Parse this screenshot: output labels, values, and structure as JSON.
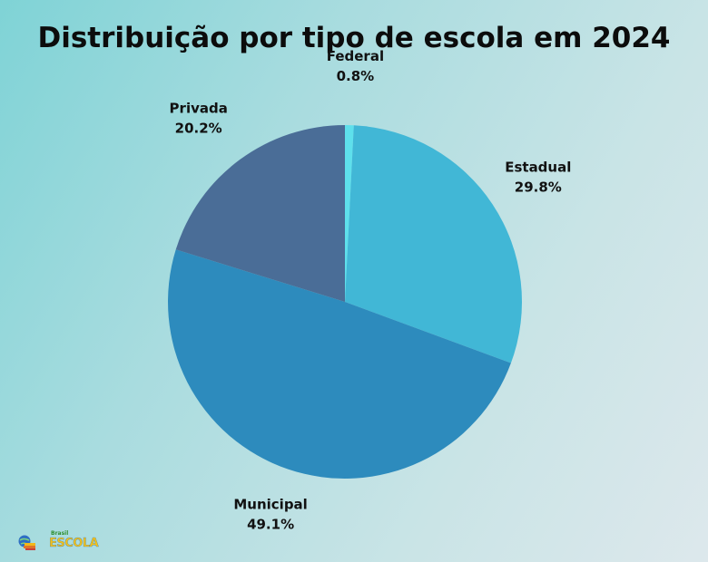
{
  "title": "Distribuição por tipo de escola em 2024",
  "chart_data": {
    "type": "pie",
    "title": "Distribuição por tipo de escola em 2024",
    "start_angle_deg": 0,
    "direction": "clockwise",
    "slices": [
      {
        "label": "Federal",
        "value": 0.8,
        "display": "0.8%",
        "color": "#5ee0ec"
      },
      {
        "label": "Estadual",
        "value": 29.8,
        "display": "29.8%",
        "color": "#41b7d6"
      },
      {
        "label": "Municipal",
        "value": 49.1,
        "display": "49.1%",
        "color": "#2d8bbd"
      },
      {
        "label": "Privada",
        "value": 20.2,
        "display": "20.2%",
        "color": "#4a6d97"
      }
    ]
  },
  "logo": {
    "small_text": "Brasil",
    "word": "ESCOLA",
    "icon": "globe-book-icon"
  }
}
